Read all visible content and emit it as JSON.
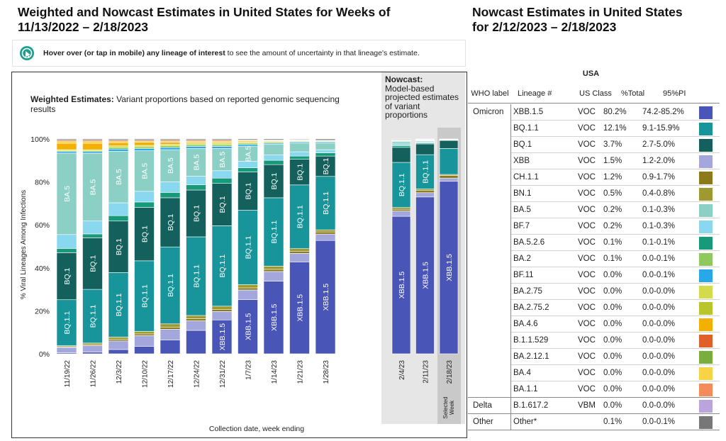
{
  "left_title_line1": "Weighted and Nowcast Estimates in United States for Weeks of",
  "left_title_line2": "11/13/2022 – 2/18/2023",
  "right_title_line1": "Nowcast Estimates in United States",
  "right_title_line2": "for 2/12/2023 – 2/18/2023",
  "hover": {
    "bold": "Hover over (or tap in mobile) any lineage of interest",
    "rest": " to see the amount of uncertainty in that lineage's estimate."
  },
  "weighted": {
    "title_bold": "Weighted Estimates:",
    "title_rest": " Variant proportions based on reported genomic sequencing",
    "title_line2": "results"
  },
  "nowcast": {
    "title_bold": "Nowcast:",
    "desc": [
      "Model-based",
      "projected estimates",
      "of variant",
      "proportions"
    ],
    "selected_label": [
      "Selected",
      "Week"
    ]
  },
  "chart_data": {
    "type": "bar",
    "stacked": true,
    "ylabel": "% Viral Lineages Among Infections",
    "xlabel": "Collection date, week ending",
    "y_ticks": [
      "0%",
      "20%",
      "40%",
      "60%",
      "80%",
      "100%"
    ],
    "ylim": [
      0,
      100
    ],
    "colors": {
      "XBB.1.5": "#4a55b8",
      "XBB": "#a4a7dc",
      "CH.1.1": "#8a7a1c",
      "BN.1": "#9e9a30",
      "BQ.1.1": "#18959a",
      "BQ.1": "#14605c",
      "BA.5": "#8ccfc4",
      "BF.7": "#8ad8f0",
      "BA.5.2.6": "#169a7a",
      "BA.2": "#8fc85c",
      "BF.11": "#28a8e8",
      "BA.2.75": "#d2dc4a",
      "BA.4.6": "#f4b000",
      "BA.4": "#f7d445",
      "B.1.1.529": "#e0602a",
      "Other": "#777777"
    },
    "series_order": [
      "XBB.1.5",
      "XBB",
      "CH.1.1",
      "BN.1",
      "BQ.1.1",
      "BQ.1",
      "BA.5.2.6",
      "BF.7",
      "BA.5",
      "BF.11",
      "BA.2",
      "BA.2.75",
      "BA.4.6",
      "BA.4",
      "B.1.1.529",
      "Other"
    ],
    "weeks": [
      {
        "date": "11/19/22",
        "values": {
          "XBB.1.5": 0.5,
          "XBB": 2.5,
          "CH.1.1": 0.3,
          "BN.1": 0.5,
          "BQ.1.1": 21.5,
          "BQ.1": 22,
          "BA.5.2.6": 2,
          "BF.7": 6.5,
          "BA.5": 38,
          "BF.11": 0.7,
          "BA.2": 0.5,
          "BA.2.75": 0.5,
          "BA.4.6": 3,
          "BA.4": 1,
          "B.1.1.529": 0.5,
          "Other": 0.5
        }
      },
      {
        "date": "11/26/22",
        "values": {
          "XBB.1.5": 0.8,
          "XBB": 3,
          "CH.1.1": 0.5,
          "BN.1": 0.7,
          "BQ.1.1": 25,
          "BQ.1": 24,
          "BA.5.2.6": 1.8,
          "BF.7": 6,
          "BA.5": 31.5,
          "BF.11": 0.7,
          "BA.2": 0.5,
          "BA.2.75": 0.5,
          "BA.4.6": 3,
          "BA.4": 1,
          "B.1.1.529": 0.5,
          "Other": 0.5
        }
      },
      {
        "date": "12/3/22",
        "values": {
          "XBB.1.5": 2,
          "XBB": 4,
          "CH.1.1": 0.8,
          "BN.1": 1,
          "BQ.1.1": 30,
          "BQ.1": 24,
          "BA.5.2.6": 2.5,
          "BF.7": 6,
          "BA.5": 24,
          "BF.11": 1,
          "BA.2": 0.8,
          "BA.2.75": 0.7,
          "BA.4.6": 1.5,
          "BA.4": 0.7,
          "B.1.1.529": 0.5,
          "Other": 0.5
        }
      },
      {
        "date": "12/10/22",
        "values": {
          "XBB.1.5": 3.5,
          "XBB": 5,
          "CH.1.1": 0.8,
          "BN.1": 1.2,
          "BQ.1.1": 33,
          "BQ.1": 25,
          "BA.5.2.6": 2.5,
          "BF.7": 5,
          "BA.5": 19,
          "BF.11": 1,
          "BA.2": 0.8,
          "BA.2.75": 0.7,
          "BA.4.6": 1.5,
          "BA.4": 0.5,
          "B.1.1.529": 0.5,
          "Other": 0.5
        }
      },
      {
        "date": "12/17/22",
        "values": {
          "XBB.1.5": 6.5,
          "XBB": 5,
          "CH.1.1": 1,
          "BN.1": 1.5,
          "BQ.1.1": 36,
          "BQ.1": 23,
          "BA.5.2.6": 2.5,
          "BF.7": 5,
          "BA.5": 15,
          "BF.11": 1,
          "BA.2": 0.8,
          "BA.2.75": 0.7,
          "BA.4.6": 1,
          "BA.4": 0.5,
          "B.1.1.529": 0.5,
          "Other": 0.5
        }
      },
      {
        "date": "12/24/22",
        "values": {
          "XBB.1.5": 11,
          "XBB": 4.5,
          "CH.1.1": 1,
          "BN.1": 1.5,
          "BQ.1.1": 37,
          "BQ.1": 22,
          "BA.5.2.6": 2.5,
          "BF.7": 4,
          "BA.5": 13,
          "BF.11": 1,
          "BA.2": 0.8,
          "BA.2.75": 0.7,
          "BA.4.6": 0.5,
          "BA.4": 0.5,
          "B.1.1.529": 0.5,
          "Other": 0.5
        }
      },
      {
        "date": "12/31/22",
        "values": {
          "XBB.1.5": 16,
          "XBB": 4,
          "CH.1.1": 1,
          "BN.1": 1.5,
          "BQ.1.1": 38,
          "BQ.1": 20,
          "BA.5.2.6": 2.5,
          "BF.7": 3.5,
          "BA.5": 10.5,
          "BF.11": 1,
          "BA.2": 0.8,
          "BA.2.75": 0.7,
          "BA.4.6": 0.5,
          "BA.4": 0.5,
          "B.1.1.529": 0.5,
          "Other": 0.5
        }
      },
      {
        "date": "1/7/23",
        "values": {
          "XBB.1.5": 25.5,
          "XBB": 4.5,
          "CH.1.1": 1,
          "BN.1": 1.5,
          "BQ.1.1": 35,
          "BQ.1": 18,
          "BA.5.2.6": 2,
          "BF.7": 3,
          "BA.5": 7,
          "BF.11": 0.8,
          "BA.2": 0.7,
          "BA.2.75": 0.5,
          "BA.4.6": 0.5,
          "BA.4": 0.3,
          "B.1.1.529": 0.2,
          "Other": 0.5
        }
      },
      {
        "date": "1/14/23",
        "values": {
          "XBB.1.5": 34,
          "XBB": 4.5,
          "CH.1.1": 1,
          "BN.1": 1.5,
          "BQ.1.1": 32,
          "BQ.1": 15.5,
          "BA.5.2.6": 2,
          "BF.7": 2.5,
          "BA.5": 5,
          "BF.11": 0.5,
          "BA.2": 0.5,
          "BA.2.75": 0.3,
          "BA.4.6": 0.3,
          "BA.4": 0.2,
          "B.1.1.529": 0.2,
          "Other": 0.5
        }
      },
      {
        "date": "1/21/23",
        "values": {
          "XBB.1.5": 43,
          "XBB": 4,
          "CH.1.1": 1,
          "BN.1": 1.2,
          "BQ.1.1": 29.8,
          "BQ.1": 12,
          "BA.5.2.6": 1.5,
          "BF.7": 2,
          "BA.5": 4,
          "BF.11": 0.5,
          "BA.2": 0.4,
          "BA.2.75": 0.3,
          "BA.4.6": 0.2,
          "BA.4": 0.2,
          "B.1.1.529": 0.1,
          "Other": 0.3
        }
      },
      {
        "date": "1/28/23",
        "values": {
          "XBB.1.5": 53,
          "XBB": 3,
          "CH.1.1": 1,
          "BN.1": 1,
          "BQ.1.1": 25,
          "BQ.1": 9.5,
          "BA.5.2.6": 1.5,
          "BF.7": 1.5,
          "BA.5": 3,
          "BF.11": 0.5,
          "BA.2": 0.4,
          "BA.2.75": 0.2,
          "BA.4.6": 0.1,
          "BA.4": 0.1,
          "B.1.1.529": 0.1,
          "Other": 0.6
        }
      }
    ],
    "nowcast_weeks": [
      {
        "date": "2/4/23",
        "values": {
          "XBB.1.5": 64,
          "XBB": 2.5,
          "CH.1.1": 0.8,
          "BN.1": 0.8,
          "BQ.1.1": 21,
          "BQ.1": 7,
          "BA.5.2.6": 0.8,
          "BF.7": 0.8,
          "BA.5": 1,
          "BF.11": 0.3,
          "BA.2": 0.3,
          "BA.2.75": 0.1,
          "BA.4.6": 0.1,
          "BA.4": 0.1,
          "B.1.1.529": 0.1,
          "Other": 0.3
        }
      },
      {
        "date": "2/11/23",
        "values": {
          "XBB.1.5": 73,
          "XBB": 2,
          "CH.1.1": 1,
          "BN.1": 0.7,
          "BQ.1.1": 16,
          "BQ.1": 5,
          "BA.5.2.6": 0.4,
          "BF.7": 0.4,
          "BA.5": 0.5,
          "BF.11": 0.2,
          "BA.2": 0.2,
          "BA.2.75": 0.1,
          "BA.4.6": 0.1,
          "BA.4": 0.1,
          "B.1.1.529": 0.1,
          "Other": 0.2
        }
      },
      {
        "date": "2/18/23",
        "values": {
          "XBB.1.5": 80.2,
          "XBB": 1.5,
          "CH.1.1": 1.2,
          "BN.1": 0.5,
          "BQ.1.1": 12.1,
          "BQ.1": 3.7,
          "BA.5.2.6": 0.1,
          "BF.7": 0.2,
          "BA.5": 0.2,
          "BF.11": 0.0,
          "BA.2": 0.1,
          "BA.2.75": 0.0,
          "BA.4.6": 0.0,
          "BA.4": 0.0,
          "B.1.1.529": 0.0,
          "Other": 0.1
        }
      }
    ],
    "labels": [
      {
        "week": 0,
        "text": "BA.5",
        "series": "BA.5"
      },
      {
        "week": 0,
        "text": "BQ.1",
        "series": "BQ.1"
      },
      {
        "week": 0,
        "text": "BQ.1.1",
        "series": "BQ.1.1"
      },
      {
        "week": 1,
        "text": "BA.5",
        "series": "BA.5"
      },
      {
        "week": 1,
        "text": "BQ.1",
        "series": "BQ.1"
      },
      {
        "week": 1,
        "text": "BQ.1.1",
        "series": "BQ.1.1"
      },
      {
        "week": 2,
        "text": "BA.5",
        "series": "BA.5"
      },
      {
        "week": 2,
        "text": "BQ.1",
        "series": "BQ.1"
      },
      {
        "week": 2,
        "text": "BQ.1.1",
        "series": "BQ.1.1"
      },
      {
        "week": 3,
        "text": "BA.5",
        "series": "BA.5"
      },
      {
        "week": 3,
        "text": "BQ.1",
        "series": "BQ.1"
      },
      {
        "week": 3,
        "text": "BQ.1.1",
        "series": "BQ.1.1"
      },
      {
        "week": 4,
        "text": "BA.5",
        "series": "BA.5"
      },
      {
        "week": 4,
        "text": "BQ.1",
        "series": "BQ.1"
      },
      {
        "week": 4,
        "text": "BQ.1.1",
        "series": "BQ.1.1"
      },
      {
        "week": 5,
        "text": "BA.5",
        "series": "BA.5"
      },
      {
        "week": 5,
        "text": "BQ.1",
        "series": "BQ.1"
      },
      {
        "week": 5,
        "text": "BQ.1.1",
        "series": "BQ.1.1"
      },
      {
        "week": 6,
        "text": "BA.5",
        "series": "BA.5"
      },
      {
        "week": 6,
        "text": "BQ.1",
        "series": "BQ.1"
      },
      {
        "week": 6,
        "text": "BQ.1.1",
        "series": "BQ.1.1"
      },
      {
        "week": 6,
        "text": "XBB.1.5",
        "series": "XBB.1.5"
      },
      {
        "week": 7,
        "text": "BA.5",
        "series": "BA.5"
      },
      {
        "week": 7,
        "text": "BQ.1",
        "series": "BQ.1"
      },
      {
        "week": 7,
        "text": "BQ.1.1",
        "series": "BQ.1.1"
      },
      {
        "week": 7,
        "text": "XBB.1.5",
        "series": "XBB.1.5"
      },
      {
        "week": 8,
        "text": "BQ.1",
        "series": "BQ.1"
      },
      {
        "week": 8,
        "text": "BQ.1.1",
        "series": "BQ.1.1"
      },
      {
        "week": 8,
        "text": "XBB.1.5",
        "series": "XBB.1.5"
      },
      {
        "week": 9,
        "text": "BQ.1",
        "series": "BQ.1"
      },
      {
        "week": 9,
        "text": "BQ.1.1",
        "series": "BQ.1.1"
      },
      {
        "week": 9,
        "text": "XBB.1.5",
        "series": "XBB.1.5"
      },
      {
        "week": 10,
        "text": "BQ.1",
        "series": "BQ.1"
      },
      {
        "week": 10,
        "text": "BQ.1.1",
        "series": "BQ.1.1"
      },
      {
        "week": 10,
        "text": "XBB.1.5",
        "series": "XBB.1.5"
      }
    ],
    "nowcast_labels": [
      {
        "week": 0,
        "text": "BQ.1.1",
        "series": "BQ.1.1"
      },
      {
        "week": 0,
        "text": "XBB.1.5",
        "series": "XBB.1.5"
      },
      {
        "week": 1,
        "text": "BQ.1.1",
        "series": "BQ.1.1"
      },
      {
        "week": 1,
        "text": "XBB.1.5",
        "series": "XBB.1.5"
      },
      {
        "week": 2,
        "text": "XBB.1.5",
        "series": "XBB.1.5"
      }
    ]
  },
  "table": {
    "region": "USA",
    "headers": [
      "WHO label",
      "Lineage #",
      "US Class",
      "%Total",
      "95%PI"
    ],
    "rows": [
      {
        "who": "Omicron",
        "lineage": "XBB.1.5",
        "cls": "VOC",
        "total": "80.2%",
        "pi": "74.2-85.2%",
        "color": "#4a55b8"
      },
      {
        "who": "",
        "lineage": "BQ.1.1",
        "cls": "VOC",
        "total": "12.1%",
        "pi": "9.1-15.9%",
        "color": "#18959a"
      },
      {
        "who": "",
        "lineage": "BQ.1",
        "cls": "VOC",
        "total": "3.7%",
        "pi": "2.7-5.0%",
        "color": "#14605c"
      },
      {
        "who": "",
        "lineage": "XBB",
        "cls": "VOC",
        "total": "1.5%",
        "pi": "1.2-2.0%",
        "color": "#a4a7dc"
      },
      {
        "who": "",
        "lineage": "CH.1.1",
        "cls": "VOC",
        "total": "1.2%",
        "pi": "0.9-1.7%",
        "color": "#8a7a1c"
      },
      {
        "who": "",
        "lineage": "BN.1",
        "cls": "VOC",
        "total": "0.5%",
        "pi": "0.4-0.8%",
        "color": "#9e9a30"
      },
      {
        "who": "",
        "lineage": "BA.5",
        "cls": "VOC",
        "total": "0.2%",
        "pi": "0.1-0.3%",
        "color": "#8ccfc4"
      },
      {
        "who": "",
        "lineage": "BF.7",
        "cls": "VOC",
        "total": "0.2%",
        "pi": "0.1-0.3%",
        "color": "#8ad8f0"
      },
      {
        "who": "",
        "lineage": "BA.5.2.6",
        "cls": "VOC",
        "total": "0.1%",
        "pi": "0.1-0.1%",
        "color": "#169a7a"
      },
      {
        "who": "",
        "lineage": "BA.2",
        "cls": "VOC",
        "total": "0.1%",
        "pi": "0.0-0.1%",
        "color": "#8fc85c"
      },
      {
        "who": "",
        "lineage": "BF.11",
        "cls": "VOC",
        "total": "0.0%",
        "pi": "0.0-0.1%",
        "color": "#28a8e8"
      },
      {
        "who": "",
        "lineage": "BA.2.75",
        "cls": "VOC",
        "total": "0.0%",
        "pi": "0.0-0.0%",
        "color": "#d2dc4a"
      },
      {
        "who": "",
        "lineage": "BA.2.75.2",
        "cls": "VOC",
        "total": "0.0%",
        "pi": "0.0-0.0%",
        "color": "#b8c62c"
      },
      {
        "who": "",
        "lineage": "BA.4.6",
        "cls": "VOC",
        "total": "0.0%",
        "pi": "0.0-0.0%",
        "color": "#f4b000"
      },
      {
        "who": "",
        "lineage": "B.1.1.529",
        "cls": "VOC",
        "total": "0.0%",
        "pi": "0.0-0.0%",
        "color": "#e0602a"
      },
      {
        "who": "",
        "lineage": "BA.2.12.1",
        "cls": "VOC",
        "total": "0.0%",
        "pi": "0.0-0.0%",
        "color": "#7aae3c"
      },
      {
        "who": "",
        "lineage": "BA.4",
        "cls": "VOC",
        "total": "0.0%",
        "pi": "0.0-0.0%",
        "color": "#f7d445"
      },
      {
        "who": "",
        "lineage": "BA.1.1",
        "cls": "VOC",
        "total": "0.0%",
        "pi": "0.0-0.0%",
        "color": "#f58a5a"
      },
      {
        "who": "Delta",
        "lineage": "B.1.617.2",
        "cls": "VBM",
        "total": "0.0%",
        "pi": "0.0-0.0%",
        "color": "#b9a4dc"
      },
      {
        "who": "Other",
        "lineage": "Other*",
        "cls": "",
        "total": "0.1%",
        "pi": "0.0-0.1%",
        "color": "#777777"
      }
    ]
  }
}
